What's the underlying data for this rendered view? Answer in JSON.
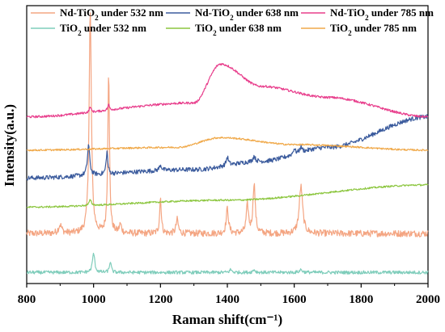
{
  "chart_data": {
    "type": "line",
    "xlabel": "Raman shift(cm⁻¹)",
    "ylabel": "Intensity(a.u.)",
    "xlim": [
      800,
      2000
    ],
    "x_ticks": [
      800,
      1000,
      1200,
      1400,
      1600,
      1800,
      2000
    ],
    "y_ticks_labeled": false,
    "legend_position": "top",
    "series": [
      {
        "name": "Nd-TiO₂ under 532 nm",
        "legend_main": "Nd-TiO",
        "legend_sub": "2",
        "legend_tail": " under 532 nm",
        "color": "#f4a582",
        "baseline": 0.18,
        "trend": [
          [
            800,
            0.0
          ],
          [
            2000,
            0.0
          ]
        ],
        "peaks": [
          [
            900,
            0.03,
            6
          ],
          [
            990,
            0.8,
            4
          ],
          [
            1045,
            0.58,
            3
          ],
          [
            1080,
            0.03,
            4
          ],
          [
            1200,
            0.13,
            3
          ],
          [
            1250,
            0.05,
            4
          ],
          [
            1400,
            0.09,
            4
          ],
          [
            1460,
            0.1,
            4
          ],
          [
            1480,
            0.18,
            4
          ],
          [
            1620,
            0.17,
            6
          ]
        ],
        "noise": 0.012
      },
      {
        "name": "Nd-TiO₂ under 638 nm",
        "legend_main": "Nd-TiO",
        "legend_sub": "2",
        "legend_tail": " under 638 nm",
        "color": "#3b5b9d",
        "baseline": 0.38,
        "trend": [
          [
            800,
            0.0
          ],
          [
            1300,
            0.03
          ],
          [
            1500,
            0.06
          ],
          [
            1700,
            0.11
          ],
          [
            2000,
            0.22
          ]
        ],
        "peaks": [
          [
            985,
            0.11,
            4
          ],
          [
            1040,
            0.08,
            3
          ],
          [
            1200,
            0.02,
            4
          ],
          [
            1400,
            0.03,
            4
          ],
          [
            1480,
            0.02,
            4
          ],
          [
            1600,
            0.02,
            4
          ],
          [
            1620,
            0.02,
            4
          ]
        ],
        "noise": 0.008
      },
      {
        "name": "Nd-TiO₂ under 785 nm",
        "legend_main": "Nd-TiO",
        "legend_sub": "2",
        "legend_tail": " under 785 nm",
        "color": "#e83e8c",
        "baseline": 0.6,
        "trend": [
          [
            800,
            0.0
          ],
          [
            1300,
            0.05
          ],
          [
            1380,
            0.19
          ],
          [
            1500,
            0.11
          ],
          [
            1700,
            0.07
          ],
          [
            2000,
            0.0
          ]
        ],
        "peaks": [
          [
            990,
            0.02,
            3
          ],
          [
            1045,
            0.02,
            3
          ]
        ],
        "noise": 0.004
      },
      {
        "name": "TiO₂ under 532 nm",
        "legend_main": "TiO",
        "legend_sub": "2",
        "legend_tail": " under 532 nm",
        "color": "#7fcdbb",
        "baseline": 0.04,
        "trend": [
          [
            800,
            0.0
          ],
          [
            2000,
            0.0
          ]
        ],
        "peaks": [
          [
            1000,
            0.07,
            4
          ],
          [
            1050,
            0.04,
            3
          ],
          [
            1410,
            0.01,
            4
          ],
          [
            1480,
            0.01,
            4
          ],
          [
            1620,
            0.01,
            5
          ]
        ],
        "noise": 0.006
      },
      {
        "name": "TiO₂ under 638 nm",
        "legend_main": "TiO",
        "legend_sub": "2",
        "legend_tail": " under 638 nm",
        "color": "#8cc63f",
        "baseline": 0.275,
        "trend": [
          [
            800,
            0.0
          ],
          [
            1400,
            0.025
          ],
          [
            2000,
            0.08
          ]
        ],
        "peaks": [
          [
            990,
            0.02,
            4
          ]
        ],
        "noise": 0.003
      },
      {
        "name": "TiO₂ under 785 nm",
        "legend_main": "TiO",
        "legend_sub": "2",
        "legend_tail": " under 785 nm",
        "color": "#f0a94a",
        "baseline": 0.48,
        "trend": [
          [
            800,
            0.0
          ],
          [
            1250,
            0.01
          ],
          [
            1380,
            0.045
          ],
          [
            1600,
            0.02
          ],
          [
            2000,
            0.0
          ]
        ],
        "peaks": [],
        "noise": 0.003
      }
    ]
  }
}
